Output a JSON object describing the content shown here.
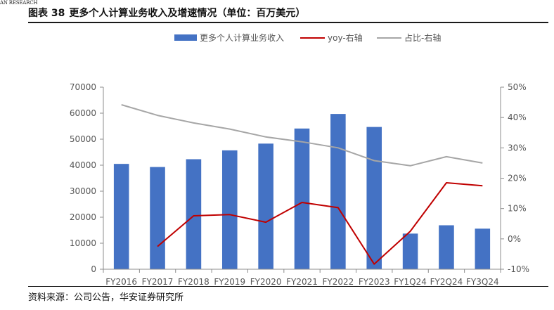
{
  "header": {
    "brand": "AN RESEARCH",
    "figure_no": "图表 38",
    "title": "更多个人计算业务收入及增速情况（单位：百万美元）"
  },
  "source": "资料来源：公司公告，华安证券研究所",
  "colors": {
    "bar": "#4472C4",
    "yoy": "#C00000",
    "share": "#A6A6A6",
    "axis": "#8c8c8c"
  },
  "chart_data": {
    "type": "bar",
    "categories": [
      "FY2016",
      "FY2017",
      "FY2018",
      "FY2019",
      "FY2020",
      "FY2021",
      "FY2022",
      "FY2023",
      "FY1Q24",
      "FY2Q24",
      "FY3Q24"
    ],
    "category_labels": [
      "FY2016",
      "FY2017",
      "FY2018",
      "FY2019",
      "FY2020",
      "FY2021",
      "FY2022",
      "FY2023",
      "FY1Q24",
      "FY2Q24",
      "FY3Q24"
    ],
    "series": [
      {
        "name": "更多个人计算业务收入",
        "kind": "bar",
        "axis": "left",
        "values": [
          40500,
          39300,
          42300,
          45700,
          48300,
          54100,
          59700,
          54700,
          13700,
          16900,
          15600
        ]
      },
      {
        "name": "yoy-右轴",
        "kind": "line",
        "axis": "right",
        "values": [
          null,
          -2.5,
          7.6,
          8.0,
          5.5,
          12.0,
          10.3,
          -8.3,
          2.5,
          18.5,
          17.5
        ]
      },
      {
        "name": "占比-右轴",
        "kind": "line",
        "axis": "right",
        "values": [
          44.2,
          40.7,
          38.2,
          36.2,
          33.6,
          32.0,
          30.0,
          25.8,
          24.1,
          27.1,
          25.0
        ]
      }
    ],
    "y_left": {
      "range": [
        0,
        70000
      ],
      "ticks": [
        "0",
        "10000",
        "20000",
        "30000",
        "40000",
        "50000",
        "60000",
        "70000"
      ]
    },
    "y_right": {
      "range": [
        -10,
        50
      ],
      "ticks": [
        "-10%",
        "0%",
        "10%",
        "20%",
        "30%",
        "40%",
        "50%"
      ]
    },
    "legend_position": "top-center",
    "grid": false
  }
}
